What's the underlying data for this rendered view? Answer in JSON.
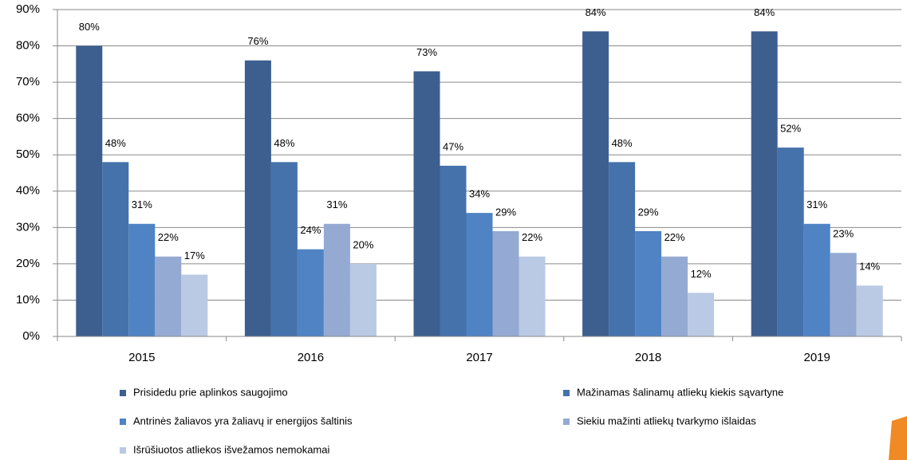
{
  "chart_data": {
    "type": "bar",
    "categories": [
      "2015",
      "2016",
      "2017",
      "2018",
      "2019"
    ],
    "series": [
      {
        "name": "Prisidedu prie aplinkos saugojimo",
        "color": "#3c5f8f",
        "values": [
          80,
          76,
          73,
          84,
          84
        ],
        "value_labels": [
          "80%",
          "76%",
          "73%",
          "84%",
          "84%"
        ]
      },
      {
        "name": "Mažinamas šalinamų atliekų kiekis sąvartyne",
        "color": "#4572aa",
        "values": [
          48,
          48,
          47,
          48,
          52
        ],
        "value_labels": [
          "48%",
          "48%",
          "47%",
          "48%",
          "52%"
        ]
      },
      {
        "name": "Antrinės žaliavos yra žaliavų ir energijos šaltinis",
        "color": "#4f83c4",
        "values": [
          31,
          24,
          34,
          29,
          31
        ],
        "value_labels": [
          "31%",
          "24%",
          "34%",
          "29%",
          "31%"
        ]
      },
      {
        "name": "Siekiu mažinti atliekų tvarkymo išlaidas",
        "color": "#95aad2",
        "values": [
          22,
          31,
          29,
          22,
          23
        ],
        "value_labels": [
          "22%",
          "31%",
          "29%",
          "22%",
          "23%"
        ]
      },
      {
        "name": "Išrūšiuotos atliekos išvežamos nemokamai",
        "color": "#bac9e4",
        "values": [
          17,
          20,
          22,
          12,
          14
        ],
        "value_labels": [
          "17%",
          "20%",
          "22%",
          "12%",
          "14%"
        ]
      }
    ],
    "ylim": [
      0,
      90
    ],
    "yticks": [
      {
        "value": 0,
        "label": "0%"
      },
      {
        "value": 10,
        "label": "10%"
      },
      {
        "value": 20,
        "label": "20%"
      },
      {
        "value": 30,
        "label": "30%"
      },
      {
        "value": 40,
        "label": "40%"
      },
      {
        "value": 50,
        "label": "50%"
      },
      {
        "value": 60,
        "label": "60%"
      },
      {
        "value": 70,
        "label": "70%"
      },
      {
        "value": 80,
        "label": "80%"
      },
      {
        "value": 90,
        "label": "90%"
      }
    ],
    "grid": true
  }
}
